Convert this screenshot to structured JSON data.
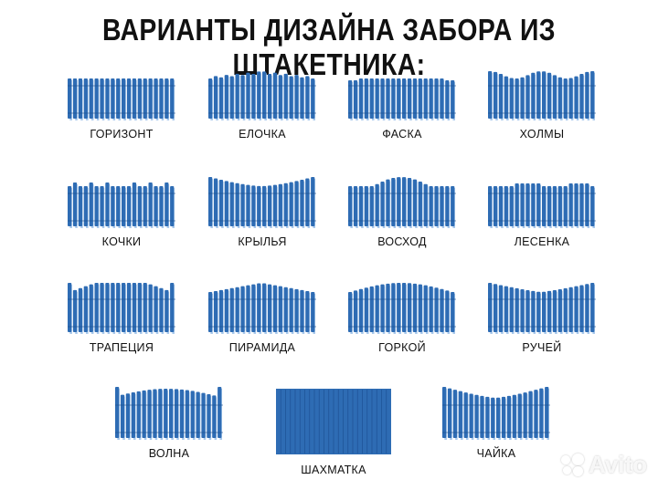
{
  "title": "ВАРИАНТЫ ДИЗАЙНА ЗАБОРА ИЗ ШТАКЕТНИКА:",
  "colors": {
    "picket": "#2e6cb4",
    "shadow": "#a9c9ec"
  },
  "designs": [
    {
      "label": "ГОРИЗОНТ"
    },
    {
      "label": "ЕЛОЧКА"
    },
    {
      "label": "ФАСКА"
    },
    {
      "label": "ХОЛМЫ"
    },
    {
      "label": "КОЧКИ"
    },
    {
      "label": "КРЫЛЬЯ"
    },
    {
      "label": "ВОСХОД"
    },
    {
      "label": "ЛЕСЕНКА"
    },
    {
      "label": "ТРАПЕЦИЯ"
    },
    {
      "label": "ПИРАМИДА"
    },
    {
      "label": "ГОРКОЙ"
    },
    {
      "label": "РУЧЕЙ"
    },
    {
      "label": "ВОЛНА"
    },
    {
      "label": "ШАХМАТКА"
    },
    {
      "label": "ЧАЙКА"
    }
  ],
  "watermark": "Avito"
}
